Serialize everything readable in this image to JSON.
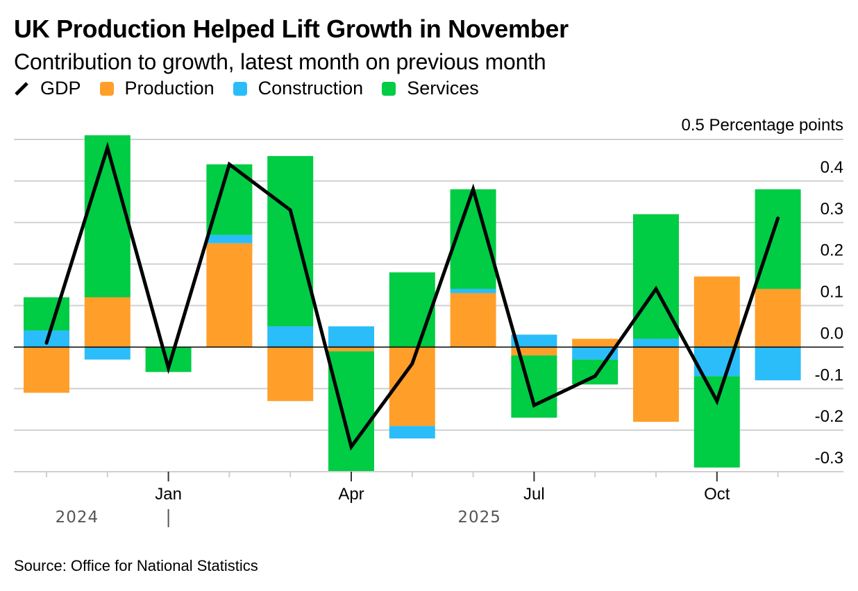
{
  "title": "UK Production Helped Lift Growth in November",
  "subtitle": "Contribution to growth, latest month on previous month",
  "legend": [
    {
      "label": "GDP",
      "type": "line",
      "color": "#000000"
    },
    {
      "label": "Production",
      "type": "swatch",
      "color": "#ff9f2a"
    },
    {
      "label": "Construction",
      "type": "swatch",
      "color": "#2abdfa"
    },
    {
      "label": "Services",
      "type": "swatch",
      "color": "#00cc44"
    }
  ],
  "source": "Source: Office for National Statistics",
  "chart_data": {
    "type": "bar",
    "stacked": true,
    "title": "UK Production Helped Lift Growth in November",
    "subtitle": "Contribution to growth, latest month on previous month",
    "ylabel": "Percentage points",
    "unit_label": "0.5 Percentage points",
    "ylim": [
      -0.3,
      0.5
    ],
    "yticks": [
      0.4,
      0.3,
      0.2,
      0.1,
      0.0,
      -0.1,
      -0.2,
      -0.3
    ],
    "ytick_labels": [
      "0.4",
      "0.3",
      "0.2",
      "0.1",
      "0.0",
      "-0.1",
      "-0.2",
      "-0.3"
    ],
    "grid": true,
    "legend_position": "top-left",
    "categories": [
      "Nov 2024",
      "Dec 2024",
      "Jan 2025",
      "Feb 2025",
      "Mar 2025",
      "Apr 2025",
      "May 2025",
      "Jun 2025",
      "Jul 2025",
      "Aug 2025",
      "Sep 2025",
      "Oct 2025",
      "Nov 2025"
    ],
    "x_tick_labels": [
      {
        "index": 2,
        "label": "Jan"
      },
      {
        "index": 5,
        "label": "Apr"
      },
      {
        "index": 8,
        "label": "Jul"
      },
      {
        "index": 11,
        "label": "Oct"
      }
    ],
    "year_labels": [
      {
        "label": "2024",
        "center_index": 0.5
      },
      {
        "label": "2025",
        "center_index": 7
      }
    ],
    "series": [
      {
        "name": "Production",
        "color": "#ff9f2a",
        "values": [
          -0.11,
          0.12,
          0.0,
          0.25,
          -0.13,
          -0.01,
          -0.19,
          0.13,
          -0.02,
          0.02,
          -0.18,
          0.17,
          0.14
        ]
      },
      {
        "name": "Construction",
        "color": "#2abdfa",
        "values": [
          0.04,
          -0.03,
          0.0,
          0.02,
          0.05,
          0.05,
          -0.03,
          0.01,
          0.03,
          -0.03,
          0.02,
          -0.07,
          -0.08
        ]
      },
      {
        "name": "Services",
        "color": "#00cc44",
        "values": [
          0.08,
          0.39,
          -0.06,
          0.17,
          0.41,
          -0.29,
          0.18,
          0.24,
          -0.15,
          -0.06,
          0.3,
          -0.22,
          0.24
        ]
      },
      {
        "name": "GDP",
        "type": "line",
        "color": "#000000",
        "values": [
          0.01,
          0.48,
          -0.05,
          0.44,
          0.33,
          -0.24,
          -0.04,
          0.38,
          -0.14,
          -0.07,
          0.14,
          -0.13,
          0.31
        ]
      }
    ]
  }
}
